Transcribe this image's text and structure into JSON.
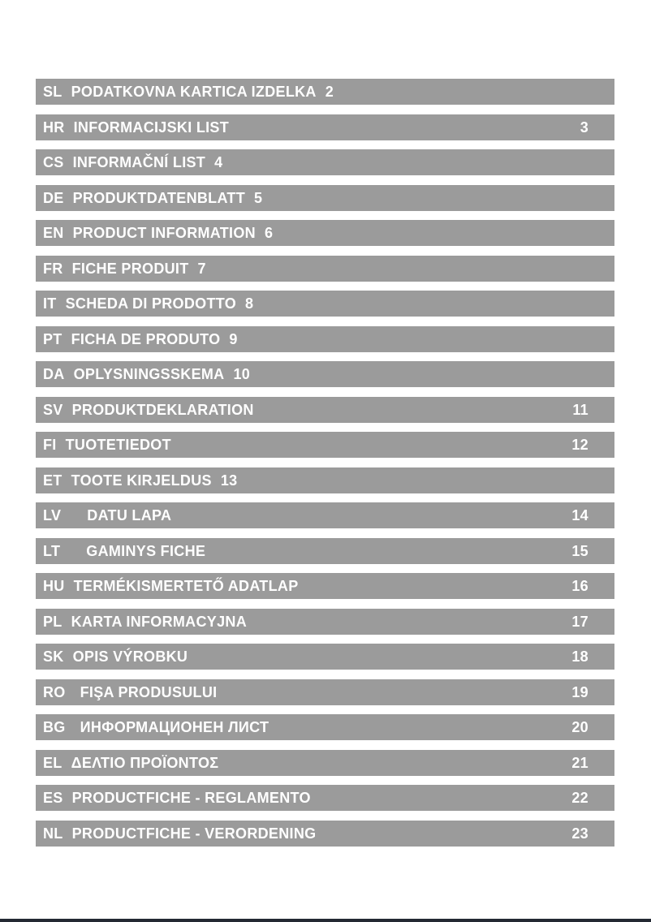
{
  "page": {
    "bg_color": "#ffffff",
    "bar_color": "#9b9b9b",
    "bar_text_color": "#ffffff",
    "footer_rule_color": "#242933"
  },
  "toc": {
    "items": [
      {
        "code": "SL",
        "title": "PODATKOVNA KARTICA IZDELKA",
        "page": "2",
        "page_position": "inline",
        "gap": "normal"
      },
      {
        "code": "HR",
        "title": "INFORMACIJSKI LIST",
        "page": "3",
        "page_position": "right",
        "gap": "normal"
      },
      {
        "code": "CS",
        "title": "INFORMAČNÍ LIST",
        "page": "4",
        "page_position": "inline",
        "gap": "normal"
      },
      {
        "code": "DE",
        "title": "PRODUKTDATENBLATT",
        "page": "5",
        "page_position": "inline",
        "gap": "normal"
      },
      {
        "code": "EN",
        "title": "PRODUCT INFORMATION",
        "page": "6",
        "page_position": "inline",
        "gap": "normal"
      },
      {
        "code": "FR",
        "title": "FICHE PRODUIT",
        "page": "7",
        "page_position": "inline",
        "gap": "normal"
      },
      {
        "code": "IT",
        "title": "SCHEDA DI PRODOTTO",
        "page": "8",
        "page_position": "inline",
        "gap": "normal"
      },
      {
        "code": "PT",
        "title": "FICHA DE PRODUTO",
        "page": "9",
        "page_position": "inline",
        "gap": "normal"
      },
      {
        "code": "DA",
        "title": "OPLYSNINGSSKEMA",
        "page": "10",
        "page_position": "inline",
        "gap": "normal"
      },
      {
        "code": "SV",
        "title": "PRODUKTDEKLARATION",
        "page": "11",
        "page_position": "right",
        "gap": "normal"
      },
      {
        "code": "FI",
        "title": "TUOTETIEDOT",
        "page": "12",
        "page_position": "right",
        "gap": "normal"
      },
      {
        "code": "ET",
        "title": "TOOTE KIRJELDUS",
        "page": "13",
        "page_position": "inline",
        "gap": "normal"
      },
      {
        "code": "LV",
        "title": "DATU LAPA",
        "page": "14",
        "page_position": "right",
        "gap": "wide"
      },
      {
        "code": "LT",
        "title": "GAMINYS FICHE",
        "page": "15",
        "page_position": "right",
        "gap": "wide"
      },
      {
        "code": "HU",
        "title": "TERMÉKISMERTETŐ ADATLAP",
        "page": "16",
        "page_position": "right",
        "gap": "normal"
      },
      {
        "code": "PL",
        "title": "KARTA INFORMACYJNA",
        "page": "17",
        "page_position": "right",
        "gap": "normal"
      },
      {
        "code": "SK",
        "title": "OPIS VÝROBKU",
        "page": "18",
        "page_position": "right",
        "gap": "normal"
      },
      {
        "code": "RO",
        "title": "FIŞA PRODUSULUI",
        "page": "19",
        "page_position": "right",
        "gap": "medium"
      },
      {
        "code": "BG",
        "title": "ИНФОРМАЦИОНЕН ЛИСТ",
        "page": "20",
        "page_position": "right",
        "gap": "medium"
      },
      {
        "code": "EL",
        "title": "ΔΕΛΤΙΟ ΠΡΟΪΟΝΤΟΣ",
        "page": "21",
        "page_position": "right",
        "gap": "normal"
      },
      {
        "code": "ES",
        "title": "PRODUCTFICHE - REGLAMENTO",
        "page": "22",
        "page_position": "right",
        "gap": "normal"
      },
      {
        "code": "NL",
        "title": "PRODUCTFICHE - VERORDENING",
        "page": "23",
        "page_position": "right",
        "gap": "normal"
      }
    ]
  }
}
